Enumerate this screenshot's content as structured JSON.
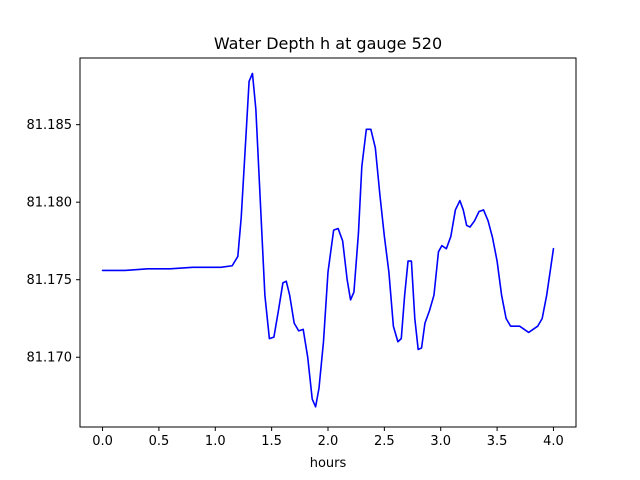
{
  "chart_data": {
    "type": "line",
    "title": "Water Depth h at gauge 520",
    "xlabel": "hours",
    "ylabel": "",
    "xlim": [
      -0.2,
      4.2
    ],
    "ylim": [
      81.1655,
      81.1893
    ],
    "x_ticks": [
      0.0,
      0.5,
      1.0,
      1.5,
      2.0,
      2.5,
      3.0,
      3.5,
      4.0
    ],
    "x_tick_labels": [
      "0.0",
      "0.5",
      "1.0",
      "1.5",
      "2.0",
      "2.5",
      "3.0",
      "3.5",
      "4.0"
    ],
    "y_ticks": [
      81.17,
      81.175,
      81.18,
      81.185
    ],
    "y_tick_labels": [
      "81.170",
      "81.175",
      "81.180",
      "81.185"
    ],
    "grid": false,
    "legend": "none",
    "series": [
      {
        "color": "#0000ff",
        "x": [
          0.0,
          0.2,
          0.4,
          0.6,
          0.8,
          0.95,
          1.05,
          1.15,
          1.2,
          1.23,
          1.27,
          1.3,
          1.33,
          1.36,
          1.4,
          1.44,
          1.48,
          1.52,
          1.56,
          1.6,
          1.63,
          1.66,
          1.7,
          1.74,
          1.78,
          1.82,
          1.86,
          1.89,
          1.92,
          1.96,
          2.0,
          2.05,
          2.09,
          2.13,
          2.17,
          2.2,
          2.23,
          2.27,
          2.3,
          2.34,
          2.38,
          2.42,
          2.46,
          2.5,
          2.54,
          2.58,
          2.62,
          2.65,
          2.68,
          2.71,
          2.74,
          2.77,
          2.8,
          2.83,
          2.86,
          2.9,
          2.94,
          2.98,
          3.01,
          3.05,
          3.09,
          3.13,
          3.17,
          3.2,
          3.23,
          3.26,
          3.3,
          3.34,
          3.38,
          3.42,
          3.46,
          3.5,
          3.54,
          3.58,
          3.62,
          3.66,
          3.7,
          3.74,
          3.78,
          3.82,
          3.86,
          3.9,
          3.94,
          3.98,
          4.0
        ],
        "y": [
          81.1756,
          81.1756,
          81.1757,
          81.1757,
          81.1758,
          81.1758,
          81.1758,
          81.1759,
          81.1765,
          81.179,
          81.184,
          81.1878,
          81.1883,
          81.186,
          81.18,
          81.174,
          81.1712,
          81.1713,
          81.173,
          81.1748,
          81.1749,
          81.174,
          81.1722,
          81.1717,
          81.1718,
          81.17,
          81.1673,
          81.1668,
          81.168,
          81.171,
          81.1755,
          81.1782,
          81.1783,
          81.1775,
          81.175,
          81.1737,
          81.1742,
          81.178,
          81.1823,
          81.1847,
          81.1847,
          81.1835,
          81.1805,
          81.1778,
          81.1755,
          81.172,
          81.171,
          81.1712,
          81.174,
          81.1762,
          81.1762,
          81.1725,
          81.1705,
          81.1706,
          81.1722,
          81.173,
          81.174,
          81.1768,
          81.1772,
          81.177,
          81.1778,
          81.1795,
          81.1801,
          81.1795,
          81.1785,
          81.1784,
          81.1788,
          81.1794,
          81.1795,
          81.1788,
          81.1777,
          81.1762,
          81.174,
          81.1725,
          81.172,
          81.172,
          81.172,
          81.1718,
          81.1716,
          81.1718,
          81.172,
          81.1725,
          81.174,
          81.176,
          81.177
        ]
      }
    ]
  }
}
